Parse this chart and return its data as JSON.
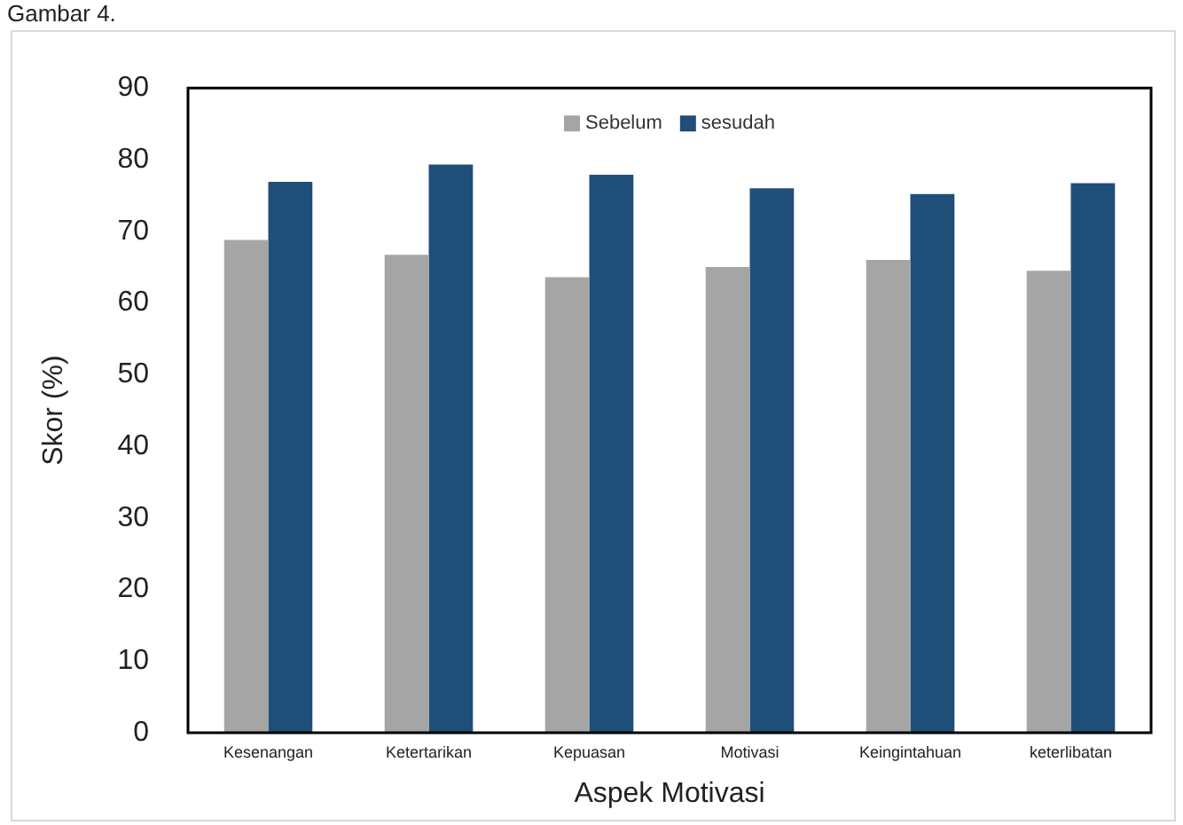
{
  "chart_data": {
    "type": "bar",
    "xlabel": "Aspek Motivasi",
    "ylabel": "Skor (%)",
    "annotations": [
      "Gambar 4."
    ],
    "categories": [
      "Kesenangan",
      "Ketertarikan",
      "Kepuasan",
      "Motivasi",
      "Keingintahuan",
      "keterlibatan"
    ],
    "series": [
      {
        "name": "Sebelum",
        "color": "#a5a5a5",
        "values": [
          68.8,
          66.7,
          63.6,
          65.0,
          66.0,
          64.5
        ]
      },
      {
        "name": "sesudah",
        "color": "#1f4e79",
        "values": [
          76.9,
          79.3,
          77.9,
          76.0,
          75.2,
          76.7
        ]
      }
    ],
    "ylim": [
      0,
      90
    ],
    "yticks": [
      0,
      10,
      20,
      30,
      40,
      50,
      60,
      70,
      80,
      90
    ],
    "grid": false,
    "legend": "top"
  }
}
